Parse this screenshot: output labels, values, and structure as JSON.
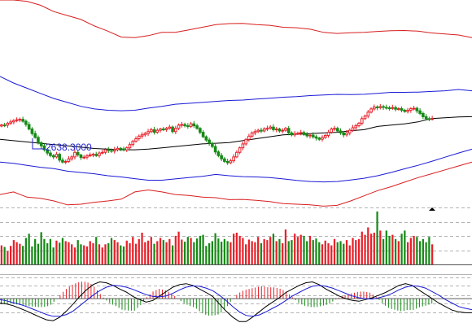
{
  "chart_data": {
    "type": "line",
    "panels": [
      "price",
      "volume",
      "macd"
    ],
    "low_label": "2638.3000",
    "colors": {
      "up": "#e8202a",
      "down": "#178a17",
      "ma": "#000000",
      "inner_band": "#1a1ad6",
      "outer_band": "#d81e1e",
      "label": "#2020d0",
      "macd_line1": "#000000",
      "macd_line2": "#1a1ad6",
      "grid": "#9a9a9a"
    },
    "price": {
      "ylim": [
        2300,
        3900
      ],
      "close": [
        2936,
        2935,
        2950,
        2960,
        2970,
        2976,
        2980,
        2965,
        2940,
        2905,
        2870,
        2840,
        2800,
        2775,
        2745,
        2720,
        2700,
        2690,
        2710,
        2665,
        2650,
        2655,
        2675,
        2690,
        2725,
        2705,
        2685,
        2688,
        2700,
        2705,
        2710,
        2700,
        2720,
        2725,
        2745,
        2740,
        2735,
        2745,
        2756,
        2752,
        2744,
        2760,
        2785,
        2810,
        2830,
        2850,
        2860,
        2870,
        2885,
        2900,
        2880,
        2895,
        2905,
        2900,
        2910,
        2920,
        2885,
        2910,
        2935,
        2940,
        2930,
        2925,
        2945,
        2930,
        2910,
        2880,
        2845,
        2820,
        2795,
        2770,
        2728,
        2700,
        2675,
        2655,
        2645,
        2660,
        2690,
        2725,
        2760,
        2790,
        2825,
        2850,
        2875,
        2885,
        2895,
        2890,
        2905,
        2910,
        2920,
        2900,
        2905,
        2890,
        2895,
        2910,
        2875,
        2860,
        2870,
        2872,
        2878,
        2862,
        2852,
        2858,
        2845,
        2835,
        2826,
        2840,
        2855,
        2880,
        2905,
        2910,
        2890,
        2875,
        2860,
        2875,
        2895,
        2915,
        2930,
        2950,
        2985,
        3005,
        3035,
        3060,
        3075,
        3070,
        3078,
        3072,
        3068,
        3065,
        3070,
        3058,
        3062,
        3050,
        3040,
        3050,
        3062,
        3065,
        3045,
        3025,
        3000,
        2985,
        2982,
        2985
      ]
    },
    "bands": {
      "ma": [
        2825,
        2815,
        2805,
        2795,
        2785,
        2775,
        2765,
        2755,
        2750,
        2745,
        2745,
        2750,
        2760,
        2770,
        2780,
        2790,
        2795,
        2800,
        2815,
        2830,
        2845,
        2860,
        2865,
        2870,
        2875,
        2880,
        2892,
        2900,
        2925,
        2935,
        2945,
        2960,
        2985,
        2992,
        2998,
        3000
      ],
      "inner_upper": [
        3310,
        3260,
        3220,
        3180,
        3140,
        3110,
        3080,
        3060,
        3050,
        3046,
        3050,
        3066,
        3080,
        3096,
        3103,
        3110,
        3118,
        3125,
        3128,
        3136,
        3142,
        3150,
        3155,
        3163,
        3168,
        3172,
        3171,
        3173,
        3180,
        3188,
        3188,
        3190,
        3195,
        3200,
        3210,
        3200
      ],
      "inner_lower": [
        2650,
        2640,
        2625,
        2610,
        2600,
        2580,
        2570,
        2560,
        2545,
        2535,
        2522,
        2510,
        2510,
        2520,
        2530,
        2540,
        2555,
        2545,
        2538,
        2535,
        2530,
        2520,
        2508,
        2500,
        2497,
        2500,
        2512,
        2525,
        2545,
        2570,
        2598,
        2625,
        2655,
        2688,
        2720,
        2750
      ],
      "outer_upper": [
        3900,
        3900,
        3890,
        3860,
        3810,
        3780,
        3750,
        3700,
        3660,
        3614,
        3610,
        3625,
        3650,
        3650,
        3670,
        3690,
        3710,
        3718,
        3720,
        3710,
        3705,
        3690,
        3686,
        3675,
        3650,
        3642,
        3648,
        3650,
        3658,
        3663,
        3665,
        3660,
        3646,
        3638,
        3630,
        3610
      ],
      "outer_lower": [
        2400,
        2420,
        2380,
        2370,
        2350,
        2320,
        2325,
        2340,
        2350,
        2364,
        2420,
        2435,
        2420,
        2400,
        2392,
        2380,
        2375,
        2360,
        2362,
        2355,
        2345,
        2330,
        2325,
        2320,
        2310,
        2316,
        2350,
        2390,
        2430,
        2460,
        2495,
        2530,
        2560,
        2590,
        2620,
        2650
      ]
    },
    "volume": {
      "ylim": [
        0,
        100
      ],
      "values": [
        36,
        33,
        25,
        35,
        46,
        42,
        39,
        35,
        50,
        58,
        34,
        48,
        39,
        61,
        48,
        40,
        48,
        32,
        45,
        41,
        50,
        44,
        42,
        38,
        32,
        46,
        38,
        36,
        34,
        44,
        40,
        52,
        38,
        32,
        38,
        40,
        50,
        46,
        42,
        36,
        34,
        45,
        40,
        52,
        39,
        48,
        60,
        42,
        45,
        52,
        39,
        44,
        50,
        46,
        42,
        48,
        36,
        54,
        62,
        47,
        43,
        52,
        50,
        42,
        49,
        54,
        56,
        35,
        40,
        44,
        59,
        49,
        43,
        48,
        44,
        42,
        58,
        60,
        54,
        50,
        38,
        47,
        44,
        42,
        52,
        40,
        48,
        46,
        52,
        58,
        44,
        48,
        40,
        66,
        44,
        46,
        58,
        52,
        56,
        54,
        44,
        54,
        46,
        49,
        42,
        38,
        45,
        40,
        36,
        48,
        42,
        44,
        39,
        46,
        36,
        50,
        46,
        48,
        62,
        56,
        70,
        58,
        60,
        100,
        64,
        48,
        64,
        54,
        56,
        48,
        44,
        58,
        64,
        42,
        50,
        54,
        52,
        44,
        48,
        42,
        52,
        38
      ]
    },
    "macd": {
      "ylim": [
        -70,
        50
      ],
      "dif": [
        -10,
        -12,
        -16,
        -22,
        -28,
        -35,
        -42,
        -48,
        -50,
        -42,
        -28,
        -12,
        5,
        20,
        32,
        38,
        36,
        30,
        22,
        15,
        5,
        -2,
        -8,
        -4,
        6,
        16,
        26,
        32,
        34,
        30,
        22,
        14,
        5,
        -12,
        -28,
        -42,
        -52,
        -52,
        -42,
        -30,
        -18,
        -8,
        2,
        14,
        22,
        30,
        36,
        38,
        32,
        22,
        14,
        6,
        0,
        -4,
        -6,
        -2,
        2,
        8,
        14,
        22,
        30,
        34,
        30,
        20,
        10,
        0,
        -10,
        -18,
        -26,
        -30,
        -32,
        -32
      ],
      "dea": [
        -2,
        -5,
        -9,
        -13,
        -18,
        -24,
        -30,
        -36,
        -40,
        -40,
        -36,
        -28,
        -16,
        -4,
        8,
        18,
        26,
        30,
        29,
        26,
        21,
        15,
        9,
        5,
        4,
        6,
        12,
        20,
        26,
        29,
        28,
        24,
        18,
        8,
        -4,
        -18,
        -30,
        -38,
        -40,
        -37,
        -30,
        -22,
        -14,
        -4,
        6,
        14,
        22,
        28,
        30,
        28,
        24,
        18,
        12,
        6,
        2,
        0,
        -1,
        2,
        6,
        12,
        20,
        26,
        29,
        28,
        24,
        16,
        8,
        -2,
        -10,
        -18,
        -22,
        -25
      ]
    }
  }
}
